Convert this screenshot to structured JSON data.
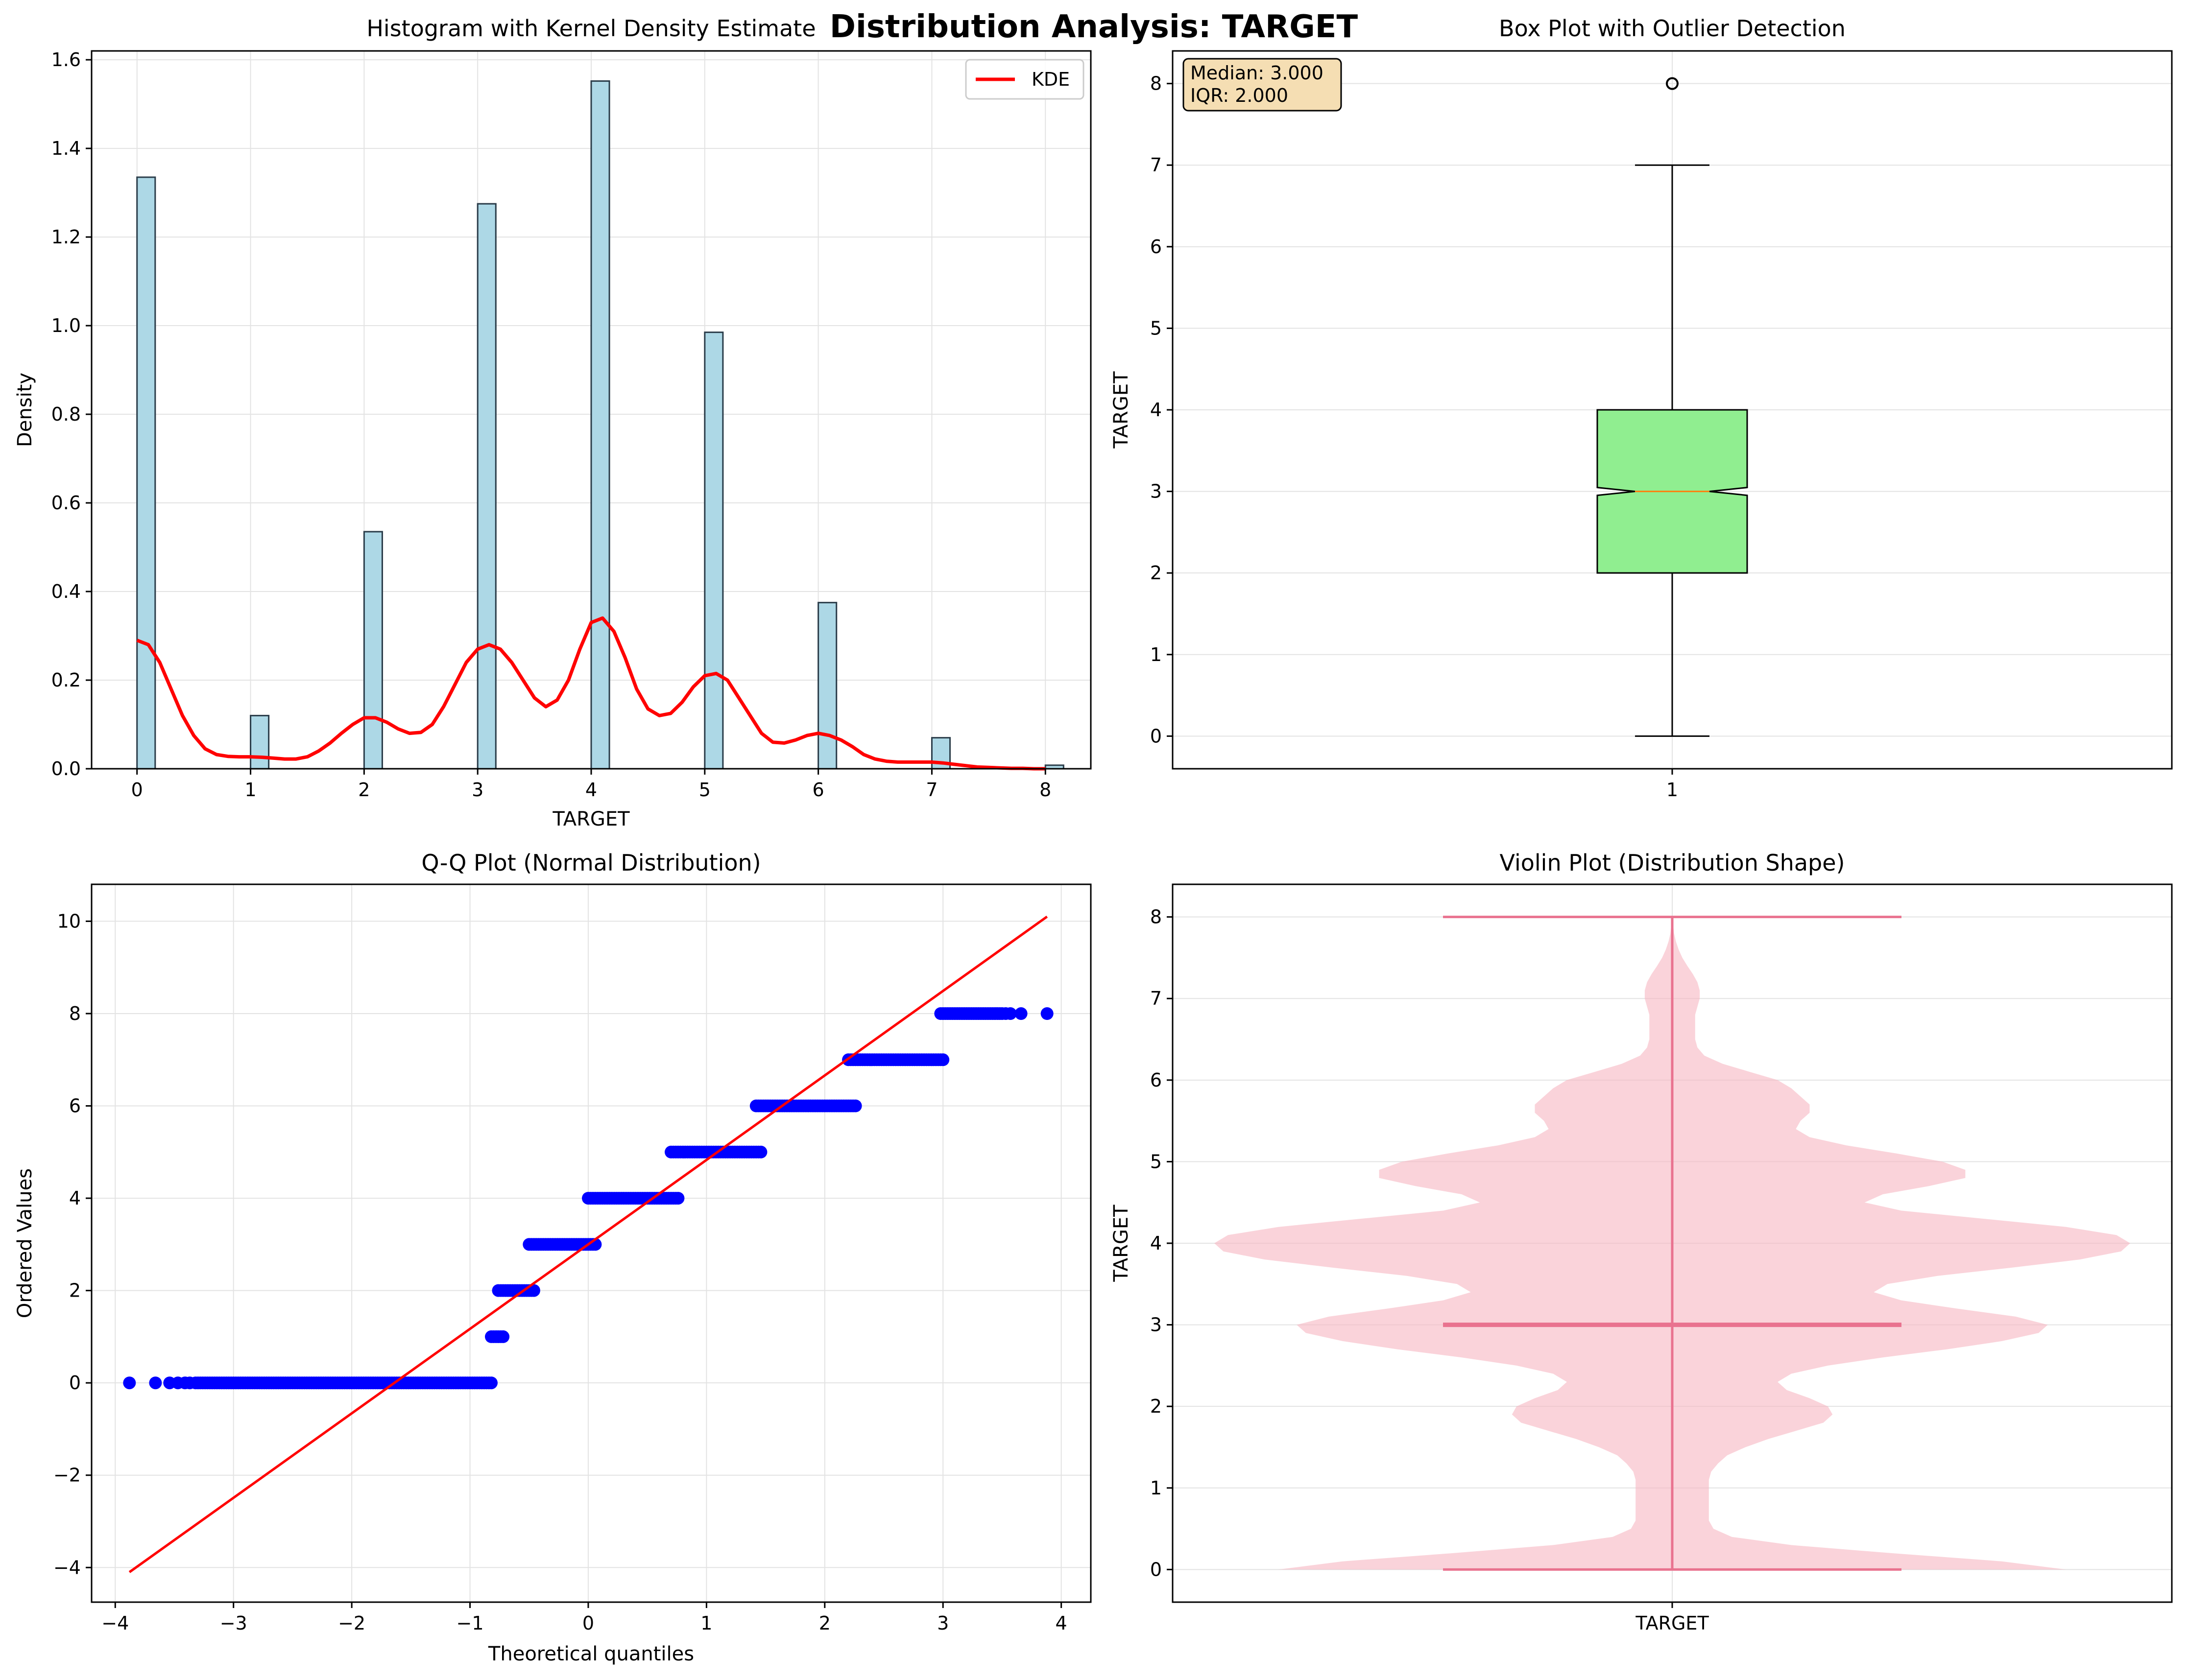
{
  "figure": {
    "title": "Distribution Analysis: TARGET"
  },
  "chart_data": [
    {
      "type": "bar",
      "subtype": "histogram with KDE",
      "title": "Histogram with Kernel Density Estimate",
      "xlabel": "TARGET",
      "ylabel": "Density",
      "xlim": [
        -0.4,
        8.4
      ],
      "ylim": [
        0,
        1.62
      ],
      "xticks": [
        "0",
        "1",
        "2",
        "3",
        "4",
        "5",
        "6",
        "7",
        "8"
      ],
      "yticks": [
        "0.0",
        "0.2",
        "0.4",
        "0.6",
        "0.8",
        "1.0",
        "1.2",
        "1.4",
        "1.6"
      ],
      "grid": true,
      "legend": {
        "placement": "top-right",
        "entries": [
          "KDE"
        ]
      },
      "bar_color": "#add8e6",
      "bars": [
        {
          "x": 0,
          "value": 1.335
        },
        {
          "x": 1,
          "value": 0.12
        },
        {
          "x": 2,
          "value": 0.535
        },
        {
          "x": 3,
          "value": 1.275
        },
        {
          "x": 4,
          "value": 1.552
        },
        {
          "x": 5,
          "value": 0.985
        },
        {
          "x": 6,
          "value": 0.375
        },
        {
          "x": 7,
          "value": 0.07
        },
        {
          "x": 8,
          "value": 0.008
        }
      ],
      "kde": {
        "name": "KDE",
        "color": "#ff0000",
        "x": [
          0,
          0.1,
          0.2,
          0.3,
          0.4,
          0.5,
          0.6,
          0.7,
          0.8,
          0.9,
          1.0,
          1.1,
          1.2,
          1.3,
          1.4,
          1.5,
          1.6,
          1.7,
          1.8,
          1.9,
          2.0,
          2.1,
          2.2,
          2.3,
          2.4,
          2.5,
          2.6,
          2.7,
          2.8,
          2.9,
          3.0,
          3.1,
          3.2,
          3.3,
          3.4,
          3.5,
          3.6,
          3.7,
          3.8,
          3.9,
          4.0,
          4.1,
          4.2,
          4.3,
          4.4,
          4.5,
          4.6,
          4.7,
          4.8,
          4.9,
          5.0,
          5.1,
          5.2,
          5.3,
          5.4,
          5.5,
          5.6,
          5.7,
          5.8,
          5.9,
          6.0,
          6.1,
          6.2,
          6.3,
          6.4,
          6.5,
          6.6,
          6.7,
          6.8,
          6.9,
          7.0,
          7.1,
          7.2,
          7.3,
          7.4,
          7.5,
          7.6,
          7.7,
          7.8,
          7.9,
          8.0
        ],
        "y": [
          0.29,
          0.28,
          0.24,
          0.18,
          0.12,
          0.075,
          0.045,
          0.032,
          0.028,
          0.027,
          0.027,
          0.026,
          0.024,
          0.022,
          0.022,
          0.027,
          0.04,
          0.058,
          0.08,
          0.1,
          0.115,
          0.115,
          0.105,
          0.09,
          0.08,
          0.082,
          0.1,
          0.14,
          0.19,
          0.24,
          0.27,
          0.28,
          0.27,
          0.24,
          0.2,
          0.16,
          0.14,
          0.155,
          0.2,
          0.27,
          0.33,
          0.34,
          0.31,
          0.25,
          0.18,
          0.135,
          0.12,
          0.125,
          0.15,
          0.185,
          0.21,
          0.215,
          0.2,
          0.16,
          0.12,
          0.08,
          0.06,
          0.058,
          0.065,
          0.075,
          0.08,
          0.075,
          0.065,
          0.05,
          0.032,
          0.022,
          0.017,
          0.015,
          0.015,
          0.015,
          0.015,
          0.013,
          0.01,
          0.007,
          0.004,
          0.003,
          0.002,
          0.001,
          0.001,
          0.0,
          0.0
        ]
      }
    },
    {
      "type": "box",
      "title": "Box Plot with Outlier Detection",
      "xlabel": "",
      "ylabel": "TARGET",
      "xticks": [
        "1"
      ],
      "yticks": [
        "0",
        "1",
        "2",
        "3",
        "4",
        "5",
        "6",
        "7",
        "8"
      ],
      "ylim": [
        -0.4,
        8.4
      ],
      "grid": true,
      "box": {
        "min": 0,
        "q1": 2,
        "median": 3,
        "q3": 4,
        "max": 7,
        "outliers": [
          8
        ],
        "notched": true
      },
      "box_color": "#90ee90",
      "median_color": "#ff7f0e",
      "annotation": {
        "line1": "Median: 3.000",
        "line2": "IQR: 2.000",
        "bg": "#f5deb3"
      }
    },
    {
      "type": "scatter",
      "title": "Q-Q Plot (Normal Distribution)",
      "xlabel": "Theoretical quantiles",
      "ylabel": "Ordered Values",
      "xlim": [
        -4.2,
        4.25
      ],
      "ylim": [
        -4.75,
        10.8
      ],
      "xticks": [
        "−4",
        "−3",
        "−2",
        "−1",
        "0",
        "1",
        "2",
        "3",
        "4"
      ],
      "yticks": [
        "−4",
        "−2",
        "0",
        "2",
        "4",
        "6",
        "8",
        "10"
      ],
      "grid": true,
      "point_color": "#0000ff",
      "line_color": "#ff0000",
      "fit_line": {
        "x": [
          -3.88,
          3.88
        ],
        "y": [
          -4.1,
          10.1
        ]
      },
      "segments": [
        {
          "value": 0,
          "x_from": -3.32,
          "x_to": -0.82
        },
        {
          "value": 1,
          "x_from": -0.82,
          "x_to": -0.72
        },
        {
          "value": 2,
          "x_from": -0.76,
          "x_to": -0.46
        },
        {
          "value": 3,
          "x_from": -0.5,
          "x_to": 0.06
        },
        {
          "value": 4,
          "x_from": 0.0,
          "x_to": 0.76
        },
        {
          "value": 5,
          "x_from": 0.7,
          "x_to": 1.46
        },
        {
          "value": 6,
          "x_from": 1.42,
          "x_to": 2.26
        },
        {
          "value": 7,
          "x_from": 2.2,
          "x_to": 3.0
        },
        {
          "value": 8,
          "x_from": 2.98,
          "x_to": 3.5
        }
      ],
      "extra_points": [
        {
          "x": -3.88,
          "y": 0
        },
        {
          "x": -3.66,
          "y": 0
        },
        {
          "x": -3.54,
          "y": 0
        },
        {
          "x": -3.47,
          "y": 0
        },
        {
          "x": -3.41,
          "y": 0
        },
        {
          "x": -3.37,
          "y": 0
        },
        {
          "x": 3.53,
          "y": 8
        },
        {
          "x": 3.57,
          "y": 8
        },
        {
          "x": 3.66,
          "y": 8
        },
        {
          "x": 3.88,
          "y": 8
        }
      ]
    },
    {
      "type": "violin",
      "title": "Violin Plot (Distribution Shape)",
      "xlabel": "TARGET",
      "ylabel": "TARGET",
      "xticks": [
        "TARGET"
      ],
      "yticks": [
        "0",
        "1",
        "2",
        "3",
        "4",
        "5",
        "6",
        "7",
        "8"
      ],
      "ylim": [
        -0.4,
        8.4
      ],
      "grid": true,
      "fill_color": "#f7b6c2",
      "line_color": "#e9728f",
      "median": 3.0,
      "extent": [
        0,
        8
      ],
      "profile": {
        "y": [
          0,
          0.1,
          0.2,
          0.3,
          0.4,
          0.5,
          0.6,
          0.7,
          0.8,
          0.9,
          1.0,
          1.1,
          1.2,
          1.3,
          1.4,
          1.5,
          1.6,
          1.7,
          1.8,
          1.9,
          2.0,
          2.1,
          2.2,
          2.3,
          2.4,
          2.5,
          2.6,
          2.7,
          2.8,
          2.9,
          3.0,
          3.1,
          3.2,
          3.3,
          3.4,
          3.5,
          3.6,
          3.7,
          3.8,
          3.9,
          4.0,
          4.1,
          4.2,
          4.3,
          4.4,
          4.5,
          4.6,
          4.7,
          4.8,
          4.9,
          5.0,
          5.1,
          5.2,
          5.3,
          5.4,
          5.5,
          5.6,
          5.7,
          5.8,
          5.9,
          6.0,
          6.1,
          6.2,
          6.3,
          6.4,
          6.5,
          6.6,
          6.7,
          6.8,
          6.9,
          7.0,
          7.1,
          7.2,
          7.3,
          7.4,
          7.5,
          7.6,
          7.7,
          7.8,
          7.9,
          8.0
        ],
        "width": [
          0.86,
          0.72,
          0.48,
          0.26,
          0.13,
          0.09,
          0.08,
          0.08,
          0.08,
          0.08,
          0.08,
          0.08,
          0.085,
          0.1,
          0.12,
          0.16,
          0.21,
          0.27,
          0.33,
          0.35,
          0.34,
          0.3,
          0.25,
          0.23,
          0.26,
          0.34,
          0.46,
          0.6,
          0.72,
          0.8,
          0.82,
          0.75,
          0.62,
          0.5,
          0.44,
          0.47,
          0.58,
          0.74,
          0.89,
          0.98,
          1.0,
          0.97,
          0.86,
          0.68,
          0.5,
          0.42,
          0.46,
          0.56,
          0.64,
          0.64,
          0.59,
          0.49,
          0.38,
          0.3,
          0.27,
          0.28,
          0.3,
          0.3,
          0.28,
          0.26,
          0.23,
          0.17,
          0.11,
          0.07,
          0.055,
          0.05,
          0.05,
          0.05,
          0.05,
          0.055,
          0.06,
          0.06,
          0.055,
          0.045,
          0.033,
          0.022,
          0.014,
          0.008,
          0.004,
          0.002,
          0.0
        ]
      }
    }
  ]
}
